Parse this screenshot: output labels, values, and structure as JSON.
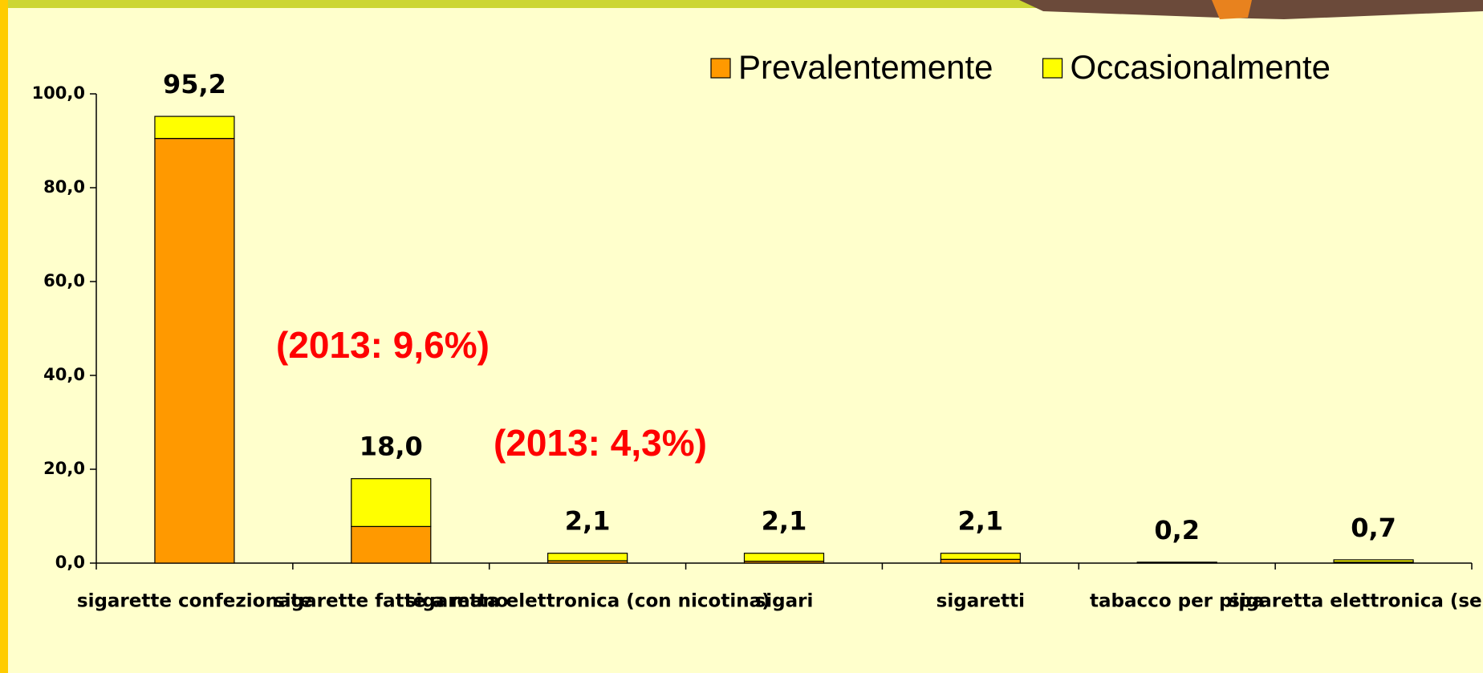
{
  "chart_data": {
    "type": "stacked_bar",
    "categories": [
      "sigarette confezionate",
      "sigarette fatte a mano",
      "sigaretta elettronica (con nicotina)",
      "sigari",
      "sigaretti",
      "tabacco per pipa",
      "sigaretta elettronica (senza"
    ],
    "series": [
      {
        "name": "Prevalentemente",
        "color": "#ff9900",
        "values": [
          90.5,
          7.8,
          0.5,
          0.4,
          0.8,
          0.1,
          0.2
        ]
      },
      {
        "name": "Occasionalmente",
        "color": "#ffff00",
        "values": [
          4.7,
          10.2,
          1.6,
          1.7,
          1.3,
          0.1,
          0.5
        ]
      }
    ],
    "totals": {
      "values": [
        95.2,
        18.0,
        2.1,
        2.1,
        2.1,
        0.2,
        0.7
      ],
      "value_labels": [
        "95,2",
        "18,0",
        "2,1",
        "2,1",
        "2,1",
        "0,2",
        "0,7"
      ]
    },
    "ylim": [
      0,
      100
    ],
    "yticks": [
      {
        "value": 0,
        "label": "0,0"
      },
      {
        "value": 20,
        "label": "20,0"
      },
      {
        "value": 40,
        "label": "40,0"
      },
      {
        "value": 60,
        "label": "60,0"
      },
      {
        "value": 80,
        "label": "80,0"
      },
      {
        "value": 100,
        "label": "100,0"
      }
    ],
    "annotations": [
      "(2013: 9,6%)",
      "(2013: 4,3%)"
    ],
    "legend": "top-right"
  }
}
